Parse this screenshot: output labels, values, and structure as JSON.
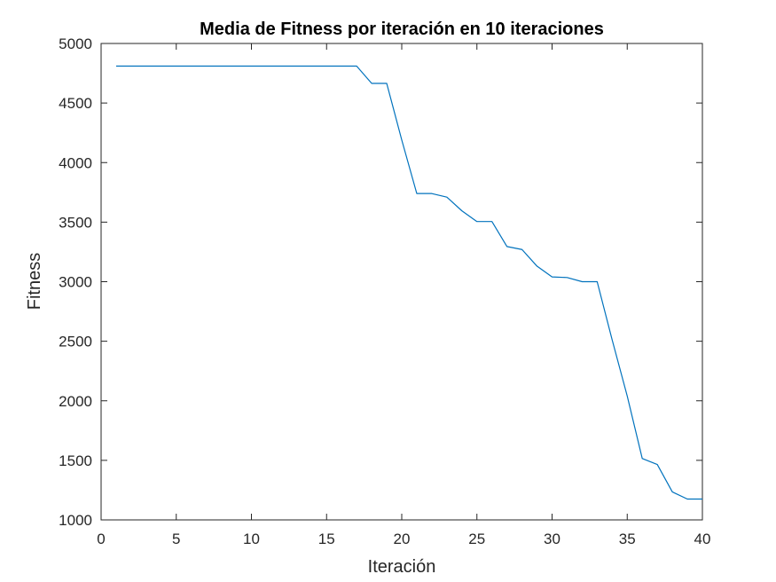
{
  "chart_data": {
    "type": "line",
    "title": "Media de Fitness por iteración en 10 iteraciones",
    "xlabel": "Iteración",
    "ylabel": "Fitness",
    "xlim": [
      0,
      40
    ],
    "ylim": [
      1000,
      5000
    ],
    "xticks": [
      0,
      5,
      10,
      15,
      20,
      25,
      30,
      35,
      40
    ],
    "yticks": [
      1000,
      1500,
      2000,
      2500,
      3000,
      3500,
      4000,
      4500,
      5000
    ],
    "grid": false,
    "series": [
      {
        "color": "#0072BD",
        "x": [
          1,
          2,
          3,
          4,
          5,
          6,
          7,
          8,
          9,
          10,
          11,
          12,
          13,
          14,
          15,
          16,
          17,
          18,
          19,
          20,
          21,
          22,
          23,
          24,
          25,
          26,
          27,
          28,
          29,
          30,
          31,
          32,
          33,
          34,
          35,
          36,
          37,
          38,
          39,
          40
        ],
        "y": [
          4810,
          4810,
          4810,
          4810,
          4810,
          4810,
          4810,
          4810,
          4810,
          4810,
          4810,
          4810,
          4810,
          4810,
          4810,
          4810,
          4810,
          4665,
          4665,
          4190,
          3740,
          3740,
          3710,
          3595,
          3505,
          3505,
          3295,
          3270,
          3130,
          3040,
          3035,
          3000,
          3000,
          2510,
          2040,
          1515,
          1465,
          1235,
          1175,
          1175
        ]
      }
    ]
  }
}
